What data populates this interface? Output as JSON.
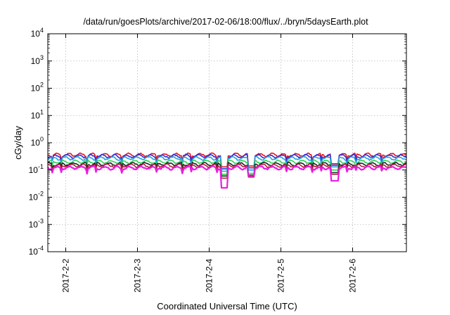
{
  "chart_data": {
    "type": "line",
    "title": "/data/run/goesPlots/archive/2017-02-06/18:00/flux/../bryn/5daysEarth.plot",
    "xlabel": "Coordinated Universal Time (UTC)",
    "ylabel": "cGy/day",
    "y_scale": "log",
    "ylim": [
      0.0001,
      10000
    ],
    "y_ticks": [
      {
        "value": 0.0001,
        "base": "10",
        "exp": "-4"
      },
      {
        "value": 0.001,
        "base": "10",
        "exp": "-3"
      },
      {
        "value": 0.01,
        "base": "10",
        "exp": "-2"
      },
      {
        "value": 0.1,
        "base": "10",
        "exp": "-1"
      },
      {
        "value": 1,
        "base": "10",
        "exp": "0"
      },
      {
        "value": 10,
        "base": "10",
        "exp": "1"
      },
      {
        "value": 100,
        "base": "10",
        "exp": "2"
      },
      {
        "value": 1000,
        "base": "10",
        "exp": "3"
      },
      {
        "value": 10000,
        "base": "10",
        "exp": "4"
      }
    ],
    "x_range_days": [
      "2017-02-01T18:00",
      "2017-02-06T18:00"
    ],
    "x_ticks": [
      {
        "date": "2017-02-02",
        "label": "2017-2-2"
      },
      {
        "date": "2017-02-03",
        "label": "2017-2-3"
      },
      {
        "date": "2017-02-04",
        "label": "2017-2-4"
      },
      {
        "date": "2017-02-05",
        "label": "2017-2-5"
      },
      {
        "date": "2017-02-06",
        "label": "2017-2-6"
      }
    ],
    "grid": true,
    "legend": "none",
    "series": [
      {
        "color": "#e8121a",
        "level": 0.36,
        "dips": [
          {
            "date": "2017-02-04T05:00",
            "value": 0.13
          },
          {
            "date": "2017-02-04T14:00",
            "value": 0.14
          },
          {
            "date": "2017-02-05T18:00",
            "value": 0.17
          }
        ]
      },
      {
        "color": "#2f2fe0",
        "level": 0.32,
        "dips": [
          {
            "date": "2017-02-04T05:00",
            "value": 0.11
          },
          {
            "date": "2017-02-04T14:00",
            "value": 0.12
          },
          {
            "date": "2017-02-05T18:00",
            "value": 0.15
          }
        ]
      },
      {
        "color": "#1fa2e0",
        "level": 0.27,
        "dips": [
          {
            "date": "2017-02-04T05:00",
            "value": 0.09
          },
          {
            "date": "2017-02-04T14:00",
            "value": 0.1
          },
          {
            "date": "2017-02-05T18:00",
            "value": 0.13
          }
        ]
      },
      {
        "color": "#2fd05a",
        "level": 0.2,
        "dips": [
          {
            "date": "2017-02-04T05:00",
            "value": 0.07
          },
          {
            "date": "2017-02-04T14:00",
            "value": 0.075
          },
          {
            "date": "2017-02-05T18:00",
            "value": 0.1
          }
        ]
      },
      {
        "color": "#202020",
        "level": 0.165,
        "dips": [
          {
            "date": "2017-02-04T05:00",
            "value": 0.06
          },
          {
            "date": "2017-02-04T14:00",
            "value": 0.065
          },
          {
            "date": "2017-02-05T18:00",
            "value": 0.08
          }
        ]
      },
      {
        "color": "#b02040",
        "level": 0.145,
        "dips": [
          {
            "date": "2017-02-04T05:00",
            "value": 0.05
          },
          {
            "date": "2017-02-04T14:00",
            "value": 0.055
          },
          {
            "date": "2017-02-05T18:00",
            "value": 0.07
          }
        ]
      },
      {
        "color": "#e81ee0",
        "level": 0.12,
        "dips": [
          {
            "date": "2017-02-04T05:00",
            "value": 0.022
          },
          {
            "date": "2017-02-04T14:00",
            "value": 0.06
          },
          {
            "date": "2017-02-05T18:00",
            "value": 0.04
          }
        ]
      }
    ]
  }
}
